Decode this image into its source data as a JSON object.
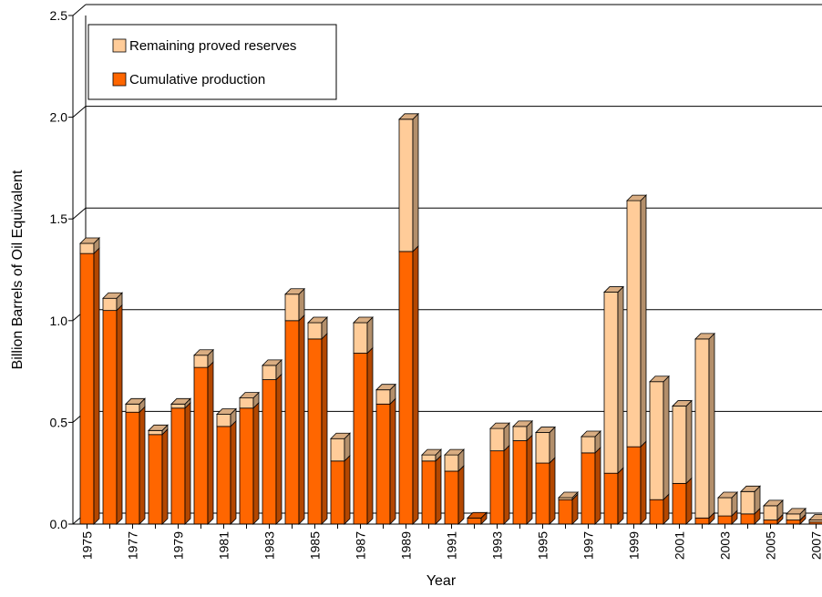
{
  "chart_data": {
    "type": "bar",
    "stacked": true,
    "xlabel": "Year",
    "ylabel": "Billion Barrels of Oil Equivalent",
    "ylim": [
      0,
      2.5
    ],
    "yticks": [
      "0.0",
      "0.5",
      "1.0",
      "1.5",
      "2.0",
      "2.5"
    ],
    "grid": true,
    "legend_position": "top-left",
    "categories": [
      "1975",
      "1976",
      "1977",
      "1978",
      "1979",
      "1980",
      "1981",
      "1982",
      "1983",
      "1984",
      "1985",
      "1986",
      "1987",
      "1988",
      "1989",
      "1990",
      "1991",
      "1992",
      "1993",
      "1994",
      "1995",
      "1996",
      "1997",
      "1998",
      "1999",
      "2000",
      "2001",
      "2002",
      "2003",
      "2004",
      "2005",
      "2006",
      "2007"
    ],
    "xtick_labels": [
      "1975",
      "",
      "1977",
      "",
      "1979",
      "",
      "1981",
      "",
      "1983",
      "",
      "1985",
      "",
      "1987",
      "",
      "1989",
      "",
      "1991",
      "",
      "1993",
      "",
      "1995",
      "",
      "1997",
      "",
      "1999",
      "",
      "2001",
      "",
      "2003",
      "",
      "2005",
      "",
      "2007"
    ],
    "series": [
      {
        "name": "Cumulative production",
        "color": "#ff6600",
        "values": [
          1.33,
          1.05,
          0.55,
          0.44,
          0.57,
          0.77,
          0.48,
          0.57,
          0.71,
          1.0,
          0.91,
          0.31,
          0.84,
          0.59,
          1.34,
          0.31,
          0.26,
          0.03,
          0.36,
          0.41,
          0.3,
          0.12,
          0.35,
          0.25,
          0.38,
          0.12,
          0.2,
          0.03,
          0.04,
          0.05,
          0.02,
          0.02,
          0.01
        ]
      },
      {
        "name": "Remaining proved reserves",
        "color": "#ffcc99",
        "values": [
          0.05,
          0.06,
          0.04,
          0.02,
          0.02,
          0.06,
          0.06,
          0.05,
          0.07,
          0.13,
          0.08,
          0.11,
          0.15,
          0.07,
          0.65,
          0.03,
          0.08,
          0.0,
          0.11,
          0.07,
          0.15,
          0.01,
          0.08,
          0.89,
          1.21,
          0.58,
          0.38,
          0.88,
          0.09,
          0.11,
          0.07,
          0.03,
          0.01
        ]
      }
    ]
  }
}
